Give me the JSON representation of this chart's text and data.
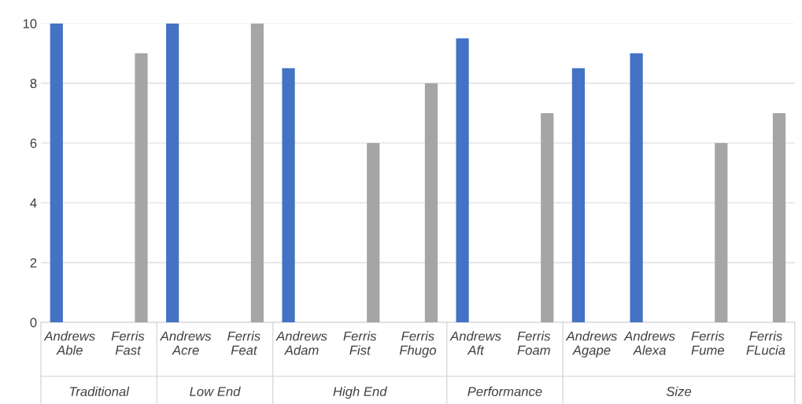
{
  "chart_data": {
    "type": "bar",
    "categories": [
      "Andrews\nAble",
      "Ferris\nFast",
      "Andrews\nAcre",
      "Ferris\nFeat",
      "Andrews\nAdam",
      "Ferris\nFist",
      "Ferris\nFhugo",
      "Andrews\nAft",
      "Ferris\nFoam",
      "Andrews\nAgape",
      "Andrews\nAlexa",
      "Ferris\nFume",
      "Ferris\nFLucia"
    ],
    "series": [
      {
        "color": "#4472c4",
        "values": [
          10,
          null,
          10,
          null,
          8.5,
          null,
          null,
          9.5,
          null,
          8.5,
          9,
          null,
          null
        ]
      },
      {
        "color": "#a5a5a5",
        "values": [
          null,
          9,
          null,
          10,
          null,
          6,
          8,
          null,
          7,
          null,
          null,
          6,
          7
        ]
      }
    ],
    "annotations": [
      "Traditional",
      "Low End",
      "High End",
      "Performance",
      "Size"
    ],
    "ylim": [
      0,
      10
    ],
    "yticks": [
      0,
      2,
      4,
      6,
      8,
      10
    ],
    "grid": "y"
  }
}
